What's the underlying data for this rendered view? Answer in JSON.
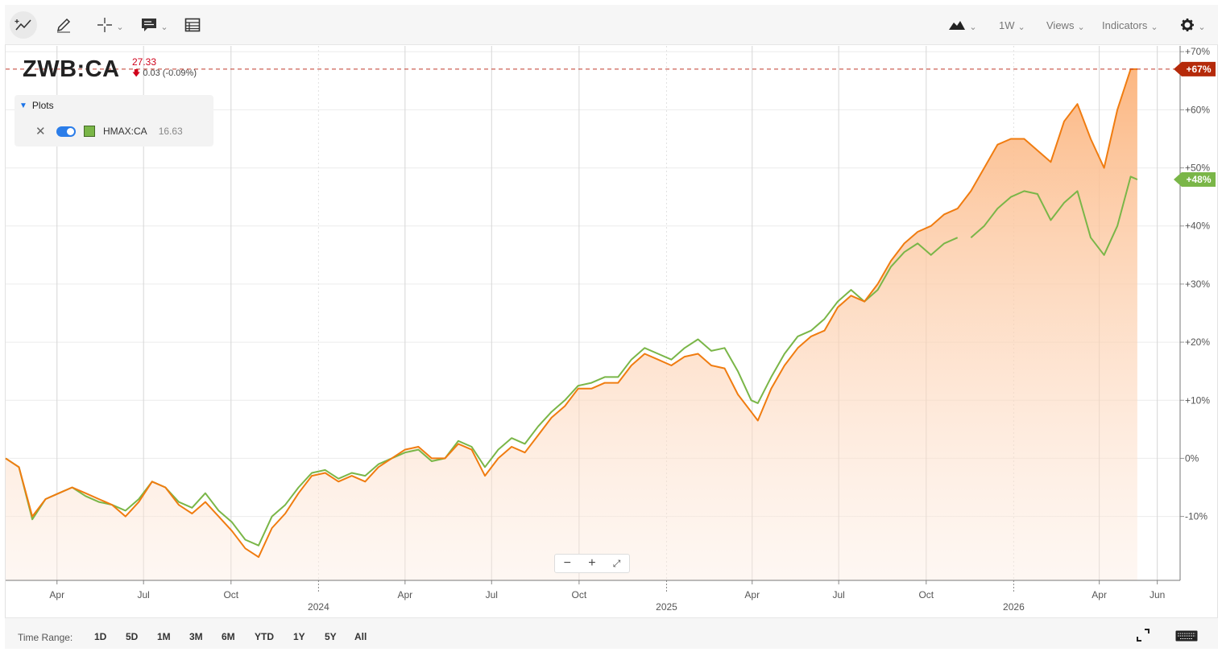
{
  "toolbar": {
    "tools": [
      "draw-trend",
      "pencil",
      "crosshair",
      "comment",
      "table"
    ],
    "chart_type_icon": "mountain-icon",
    "interval_label": "1W",
    "views_label": "Views",
    "indicators_label": "Indicators",
    "settings_icon": "gear-icon"
  },
  "symbol": {
    "ticker": "ZWB:CA",
    "last": "27.33",
    "change": "0.03 (-0.09%)",
    "change_color": "#d0021b"
  },
  "plots": {
    "header": "Plots",
    "items": [
      {
        "name": "HMAX:CA",
        "value": "16.63",
        "color": "#7ab648"
      }
    ]
  },
  "time_range": {
    "label": "Time Range:",
    "options": [
      "1D",
      "5D",
      "1M",
      "3M",
      "6M",
      "YTD",
      "1Y",
      "5Y",
      "All"
    ]
  },
  "chart_data": {
    "type": "area",
    "ylim": [
      -21,
      71
    ],
    "y_ticks": [
      {
        "v": 70,
        "label": "+70%"
      },
      {
        "v": 60,
        "label": "+60%"
      },
      {
        "v": 50,
        "label": "+50%"
      },
      {
        "v": 40,
        "label": "+40%"
      },
      {
        "v": 30,
        "label": "+30%"
      },
      {
        "v": 20,
        "label": "+20%"
      },
      {
        "v": 10,
        "label": "+10%"
      },
      {
        "v": 0,
        "label": "0%"
      },
      {
        "v": -10,
        "label": "-10%"
      }
    ],
    "x_month_ticks": [
      {
        "date": "2023-04-01",
        "label": "Apr"
      },
      {
        "date": "2023-07-01",
        "label": "Jul"
      },
      {
        "date": "2023-10-01",
        "label": "Oct"
      },
      {
        "date": "2024-04-01",
        "label": "Apr"
      },
      {
        "date": "2024-07-01",
        "label": "Jul"
      },
      {
        "date": "2024-10-01",
        "label": "Oct"
      },
      {
        "date": "2025-04-01",
        "label": "Apr"
      },
      {
        "date": "2025-07-01",
        "label": "Jul"
      },
      {
        "date": "2025-10-01",
        "label": "Oct"
      },
      {
        "date": "2026-04-01",
        "label": "Apr"
      },
      {
        "date": "2026-06-01",
        "label": "Jun"
      }
    ],
    "x_year_ticks": [
      {
        "date": "2024-01-01",
        "label": "2024"
      },
      {
        "date": "2025-01-01",
        "label": "2025"
      },
      {
        "date": "2026-01-01",
        "label": "2026"
      }
    ],
    "x_start": "2023-02-06",
    "x_end": "2026-06-25",
    "series": [
      {
        "name": "ZWB:CA",
        "color": "#f07c10",
        "end_label": "+67%",
        "end_label_color": "#b52a0a",
        "points": [
          [
            "2023-02-06",
            0
          ],
          [
            "2023-02-20",
            -1.5
          ],
          [
            "2023-03-06",
            -10
          ],
          [
            "2023-03-20",
            -7
          ],
          [
            "2023-04-03",
            -6
          ],
          [
            "2023-04-17",
            -5
          ],
          [
            "2023-05-01",
            -6
          ],
          [
            "2023-05-15",
            -7
          ],
          [
            "2023-05-29",
            -8
          ],
          [
            "2023-06-12",
            -10
          ],
          [
            "2023-06-26",
            -7.5
          ],
          [
            "2023-07-10",
            -4
          ],
          [
            "2023-07-24",
            -5
          ],
          [
            "2023-08-07",
            -8
          ],
          [
            "2023-08-21",
            -9.5
          ],
          [
            "2023-09-04",
            -7.5
          ],
          [
            "2023-09-18",
            -10
          ],
          [
            "2023-10-02",
            -12.5
          ],
          [
            "2023-10-16",
            -15.5
          ],
          [
            "2023-10-30",
            -17
          ],
          [
            "2023-11-13",
            -12
          ],
          [
            "2023-11-27",
            -9.5
          ],
          [
            "2023-12-11",
            -6
          ],
          [
            "2023-12-25",
            -3
          ],
          [
            "2024-01-08",
            -2.5
          ],
          [
            "2024-01-22",
            -4
          ],
          [
            "2024-02-05",
            -3
          ],
          [
            "2024-02-19",
            -4
          ],
          [
            "2024-03-04",
            -1.5
          ],
          [
            "2024-03-18",
            0
          ],
          [
            "2024-04-01",
            1.5
          ],
          [
            "2024-04-15",
            2
          ],
          [
            "2024-04-29",
            0
          ],
          [
            "2024-05-13",
            0
          ],
          [
            "2024-05-27",
            2.5
          ],
          [
            "2024-06-10",
            1.5
          ],
          [
            "2024-06-24",
            -3
          ],
          [
            "2024-07-08",
            0
          ],
          [
            "2024-07-22",
            2
          ],
          [
            "2024-08-05",
            1
          ],
          [
            "2024-08-19",
            4
          ],
          [
            "2024-09-02",
            7
          ],
          [
            "2024-09-16",
            9
          ],
          [
            "2024-09-30",
            12
          ],
          [
            "2024-10-14",
            12
          ],
          [
            "2024-10-28",
            13
          ],
          [
            "2024-11-11",
            13
          ],
          [
            "2024-11-25",
            16
          ],
          [
            "2024-12-09",
            18
          ],
          [
            "2024-12-23",
            17
          ],
          [
            "2025-01-06",
            16
          ],
          [
            "2025-01-20",
            17.5
          ],
          [
            "2025-02-03",
            18
          ],
          [
            "2025-02-17",
            16
          ],
          [
            "2025-03-03",
            15.5
          ],
          [
            "2025-03-17",
            11
          ],
          [
            "2025-03-31",
            8
          ],
          [
            "2025-04-07",
            6.5
          ],
          [
            "2025-04-21",
            12
          ],
          [
            "2025-05-05",
            16
          ],
          [
            "2025-05-19",
            19
          ],
          [
            "2025-06-02",
            21
          ],
          [
            "2025-06-16",
            22
          ],
          [
            "2025-06-30",
            26
          ],
          [
            "2025-07-14",
            28
          ],
          [
            "2025-07-28",
            27
          ],
          [
            "2025-08-11",
            30
          ],
          [
            "2025-08-25",
            34
          ],
          [
            "2025-09-08",
            37
          ],
          [
            "2025-09-22",
            39
          ],
          [
            "2025-10-06",
            40
          ],
          [
            "2025-10-20",
            42
          ],
          [
            "2025-11-03",
            43
          ],
          [
            "2025-11-17",
            46
          ],
          [
            "2025-12-01",
            50
          ],
          [
            "2025-12-15",
            54
          ],
          [
            "2025-12-29",
            55
          ],
          [
            "2026-01-12",
            55
          ],
          [
            "2026-01-26",
            53
          ],
          [
            "2026-02-09",
            51
          ],
          [
            "2026-02-23",
            58
          ],
          [
            "2026-03-09",
            61
          ],
          [
            "2026-03-23",
            55
          ],
          [
            "2026-04-06",
            50
          ],
          [
            "2026-04-20",
            60
          ],
          [
            "2026-05-04",
            67
          ],
          [
            "2026-05-11",
            67
          ]
        ]
      },
      {
        "name": "HMAX:CA",
        "color": "#7ab648",
        "end_label": "+48%",
        "end_label_color": "#7ab648",
        "points": [
          [
            "2023-02-06",
            0
          ],
          [
            "2023-02-20",
            -1.5
          ],
          [
            "2023-03-06",
            -10.5
          ],
          [
            "2023-03-20",
            -7
          ],
          [
            "2023-04-03",
            -6
          ],
          [
            "2023-04-17",
            -5
          ],
          [
            "2023-05-01",
            -6.5
          ],
          [
            "2023-05-15",
            -7.5
          ],
          [
            "2023-05-29",
            -8
          ],
          [
            "2023-06-12",
            -9
          ],
          [
            "2023-06-26",
            -7
          ],
          [
            "2023-07-10",
            -4
          ],
          [
            "2023-07-24",
            -5
          ],
          [
            "2023-08-07",
            -7.5
          ],
          [
            "2023-08-21",
            -8.5
          ],
          [
            "2023-09-04",
            -6
          ],
          [
            "2023-09-18",
            -9
          ],
          [
            "2023-10-02",
            -11
          ],
          [
            "2023-10-16",
            -14
          ],
          [
            "2023-10-30",
            -15
          ],
          [
            "2023-11-13",
            -10
          ],
          [
            "2023-11-27",
            -8
          ],
          [
            "2023-12-11",
            -5
          ],
          [
            "2023-12-25",
            -2.5
          ],
          [
            "2024-01-08",
            -2
          ],
          [
            "2024-01-22",
            -3.5
          ],
          [
            "2024-02-05",
            -2.5
          ],
          [
            "2024-02-19",
            -3
          ],
          [
            "2024-03-04",
            -1
          ],
          [
            "2024-03-18",
            0
          ],
          [
            "2024-04-01",
            1
          ],
          [
            "2024-04-15",
            1.5
          ],
          [
            "2024-04-29",
            -0.5
          ],
          [
            "2024-05-13",
            0
          ],
          [
            "2024-05-27",
            3
          ],
          [
            "2024-06-10",
            2
          ],
          [
            "2024-06-24",
            -1.5
          ],
          [
            "2024-07-08",
            1.5
          ],
          [
            "2024-07-22",
            3.5
          ],
          [
            "2024-08-05",
            2.5
          ],
          [
            "2024-08-19",
            5.5
          ],
          [
            "2024-09-02",
            8
          ],
          [
            "2024-09-16",
            10
          ],
          [
            "2024-09-30",
            12.5
          ],
          [
            "2024-10-14",
            13
          ],
          [
            "2024-10-28",
            14
          ],
          [
            "2024-11-11",
            14
          ],
          [
            "2024-11-25",
            17
          ],
          [
            "2024-12-09",
            19
          ],
          [
            "2024-12-23",
            18
          ],
          [
            "2025-01-06",
            17
          ],
          [
            "2025-01-20",
            19
          ],
          [
            "2025-02-03",
            20.5
          ],
          [
            "2025-02-17",
            18.5
          ],
          [
            "2025-03-03",
            19
          ],
          [
            "2025-03-17",
            15
          ],
          [
            "2025-03-31",
            10
          ],
          [
            "2025-04-07",
            9.5
          ],
          [
            "2025-04-21",
            14
          ],
          [
            "2025-05-05",
            18
          ],
          [
            "2025-05-19",
            21
          ],
          [
            "2025-06-02",
            22
          ],
          [
            "2025-06-16",
            24
          ],
          [
            "2025-06-30",
            27
          ],
          [
            "2025-07-14",
            29
          ],
          [
            "2025-07-28",
            27
          ],
          [
            "2025-08-11",
            29
          ],
          [
            "2025-08-25",
            33
          ],
          [
            "2025-09-08",
            35.5
          ],
          [
            "2025-09-22",
            37
          ],
          [
            "2025-10-06",
            35
          ],
          [
            "2025-10-20",
            37
          ],
          [
            "2025-11-03",
            38
          ],
          null,
          [
            "2025-11-17",
            38
          ],
          [
            "2025-12-01",
            40
          ],
          [
            "2025-12-15",
            43
          ],
          [
            "2025-12-29",
            45
          ],
          [
            "2026-01-12",
            46
          ],
          [
            "2026-01-26",
            45.5
          ],
          [
            "2026-02-09",
            41
          ],
          [
            "2026-02-23",
            44
          ],
          [
            "2026-03-09",
            46
          ],
          [
            "2026-03-23",
            38
          ],
          [
            "2026-04-06",
            35
          ],
          [
            "2026-04-20",
            40
          ],
          [
            "2026-05-04",
            48.5
          ],
          [
            "2026-05-11",
            48
          ]
        ]
      }
    ]
  }
}
